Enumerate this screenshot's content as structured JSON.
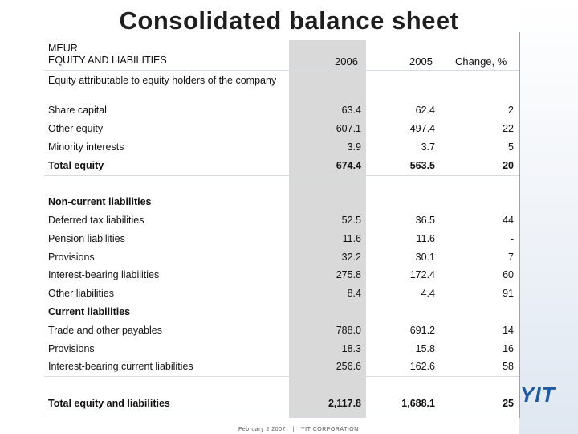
{
  "title": "Consolidated balance sheet",
  "header": {
    "unit": "MEUR",
    "caption": "EQUITY AND LIABILITIES",
    "col_2006": "2006",
    "col_2005": "2005",
    "col_change": "Change, %"
  },
  "sections": {
    "equity": "Equity attributable to equity holders of the company",
    "non_current": "Non-current liabilities",
    "current": "Current liabilities"
  },
  "rows": [
    {
      "label": "Share capital",
      "v2006": "63.4",
      "v2005": "62.4",
      "change": "2"
    },
    {
      "label": "Other equity",
      "v2006": "607.1",
      "v2005": "497.4",
      "change": "22"
    },
    {
      "label": "Minority interests",
      "v2006": "3.9",
      "v2005": "3.7",
      "change": "5"
    },
    {
      "label": "Total equity",
      "v2006": "674.4",
      "v2005": "563.5",
      "change": "20"
    },
    {
      "label": "Deferred tax liabilities",
      "v2006": "52.5",
      "v2005": "36.5",
      "change": "44"
    },
    {
      "label": "Pension liabilities",
      "v2006": "11.6",
      "v2005": "11.6",
      "change": "-"
    },
    {
      "label": "Provisions",
      "v2006": "32.2",
      "v2005": "30.1",
      "change": "7"
    },
    {
      "label": "Interest-bearing liabilities",
      "v2006": "275.8",
      "v2005": "172.4",
      "change": "60"
    },
    {
      "label": "Other liabilities",
      "v2006": "8.4",
      "v2005": "4.4",
      "change": "91"
    },
    {
      "label": "Trade and other payables",
      "v2006": "788.0",
      "v2005": "691.2",
      "change": "14"
    },
    {
      "label": "Provisions",
      "v2006": "18.3",
      "v2005": "15.8",
      "change": "16"
    },
    {
      "label": "Interest-bearing current liabilities",
      "v2006": "256.6",
      "v2005": "162.6",
      "change": "58"
    },
    {
      "label": "Total equity and liabilities",
      "v2006": "2,117.8",
      "v2005": "1,688.1",
      "change": "25"
    }
  ],
  "footer": {
    "date": "February 2 2007",
    "separator": "|",
    "company": "YIT CORPORATION"
  },
  "logo_text": "YIT",
  "colors": {
    "shaded_column": "#d9d9d9",
    "brand": "#1f5aa6"
  }
}
